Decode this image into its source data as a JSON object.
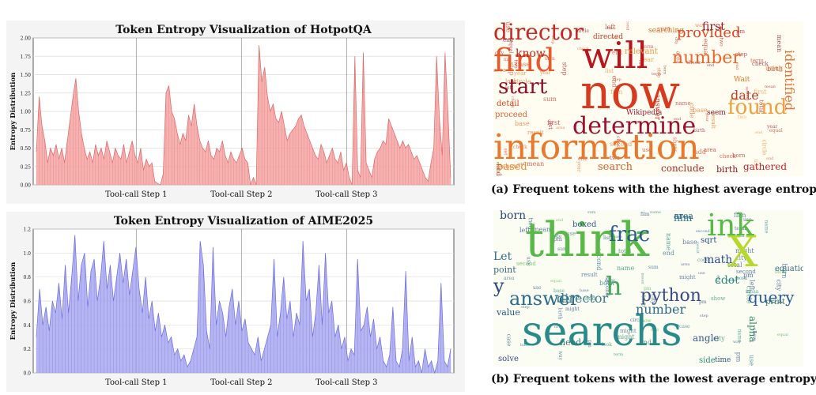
{
  "chart_data": [
    {
      "type": "area",
      "title": "Token Entropy Visualization of HotpotQA",
      "ylabel": "Entropy Distribution",
      "xlabel": "",
      "ylim": [
        0,
        2.0
      ],
      "yticks": [
        "0.00",
        "0.25",
        "0.50",
        "0.75",
        "1.00",
        "1.25",
        "1.50",
        "1.75",
        "2.00"
      ],
      "xticks": [
        "Tool-call Step 1",
        "Tool-call Step 2",
        "Tool-call Step 3"
      ],
      "step_boundaries_fraction": [
        0.245,
        0.495,
        0.745
      ],
      "grid": true,
      "color": "#f4a3a3",
      "line_color": "#e06666",
      "series": [
        {
          "values": [
            0.45,
            1.2,
            0.8,
            0.6,
            0.3,
            0.5,
            0.4,
            0.55,
            0.35,
            0.5,
            0.3,
            0.6,
            0.9,
            1.2,
            1.45,
            1.0,
            0.7,
            0.5,
            0.35,
            0.45,
            0.3,
            0.55,
            0.4,
            0.5,
            0.35,
            0.6,
            0.45,
            0.3,
            0.5,
            0.4,
            0.35,
            0.55,
            0.3,
            0.45,
            0.6,
            0.4,
            0.3,
            0.5,
            0.2,
            0.35,
            0.25,
            0.3,
            0.05,
            0.02,
            0.0,
            0.15,
            1.25,
            1.35,
            1.0,
            0.9,
            0.7,
            0.55,
            0.7,
            0.6,
            0.95,
            0.8,
            1.1,
            0.8,
            0.6,
            0.5,
            0.45,
            0.6,
            0.4,
            0.35,
            0.5,
            0.45,
            0.6,
            0.4,
            0.3,
            0.45,
            0.35,
            0.3,
            0.4,
            0.5,
            0.35,
            0.3,
            0.0,
            0.1,
            0.0,
            1.9,
            1.4,
            1.6,
            1.2,
            1.0,
            1.1,
            0.9,
            0.85,
            1.0,
            0.8,
            0.6,
            0.7,
            0.75,
            0.8,
            0.9,
            0.95,
            0.8,
            0.7,
            0.6,
            0.5,
            0.4,
            0.35,
            0.55,
            0.45,
            0.3,
            0.4,
            0.5,
            0.35,
            0.3,
            0.45,
            0.2,
            0.3,
            0.1,
            0.0,
            1.75,
            0.2,
            0.1,
            1.8,
            0.3,
            0.2,
            0.1,
            0.35,
            0.45,
            0.5,
            0.6,
            0.55,
            0.9,
            0.8,
            0.7,
            0.6,
            0.5,
            0.6,
            0.5,
            0.55,
            0.45,
            0.35,
            0.4,
            0.3,
            0.2,
            0.1,
            0.05,
            0.3,
            0.5,
            1.75,
            0.9,
            0.4,
            1.8,
            1.0,
            0.1
          ]
        }
      ]
    },
    {
      "type": "area",
      "title": "Token Entropy Visualization of AIME2025",
      "ylabel": "Entropy Distribution",
      "xlabel": "",
      "ylim": [
        0,
        1.2
      ],
      "yticks": [
        "0.0",
        "0.2",
        "0.4",
        "0.6",
        "0.8",
        "1.0",
        "1.2"
      ],
      "xticks": [
        "Tool-call Step 1",
        "Tool-call Step 2",
        "Tool-call Step 3"
      ],
      "step_boundaries_fraction": [
        0.245,
        0.495,
        0.745
      ],
      "grid": true,
      "color": "#a8a8f0",
      "line_color": "#6b6be0",
      "series": [
        {
          "values": [
            0.3,
            0.7,
            0.4,
            0.55,
            0.35,
            0.6,
            0.5,
            0.75,
            0.45,
            0.9,
            0.5,
            0.8,
            1.15,
            0.6,
            0.9,
            1.0,
            0.55,
            0.85,
            0.95,
            0.6,
            0.8,
            1.1,
            0.7,
            0.9,
            0.6,
            0.8,
            1.0,
            0.75,
            0.95,
            0.65,
            0.85,
            1.05,
            0.7,
            0.5,
            0.8,
            0.45,
            0.6,
            0.35,
            0.5,
            0.3,
            0.4,
            0.25,
            0.3,
            0.15,
            0.2,
            0.1,
            0.15,
            0.05,
            0.1,
            0.2,
            0.3,
            1.1,
            0.9,
            0.35,
            0.2,
            1.05,
            0.4,
            0.6,
            0.5,
            0.3,
            0.55,
            0.7,
            0.4,
            0.6,
            0.35,
            0.45,
            0.25,
            0.2,
            0.15,
            0.3,
            0.1,
            0.2,
            0.3,
            0.4,
            0.95,
            0.3,
            0.5,
            0.8,
            0.45,
            0.6,
            0.3,
            0.5,
            0.4,
            1.1,
            0.6,
            0.7,
            0.3,
            0.5,
            0.9,
            0.4,
            1.0,
            0.5,
            0.6,
            0.3,
            0.4,
            0.2,
            0.3,
            0.1,
            0.2,
            0.15,
            0.95,
            0.35,
            0.4,
            0.55,
            0.3,
            0.45,
            0.2,
            0.3,
            0.1,
            0.05,
            0.15,
            0.55,
            0.1,
            0.05,
            0.2,
            0.85,
            0.1,
            0.3,
            0.05,
            0.1,
            0.0,
            0.2,
            0.05,
            0.1,
            0.0,
            0.1,
            0.75,
            0.1,
            0.05,
            0.2
          ]
        }
      ]
    }
  ],
  "wordclouds": [
    {
      "caption": "(a) Frequent tokens with the highest average entropy",
      "background": "#fffdf2",
      "words": [
        {
          "t": "now",
          "s": 60,
          "c": "#d83a1f"
        },
        {
          "t": "information",
          "s": 44,
          "c": "#e8782d"
        },
        {
          "t": "will",
          "s": 46,
          "c": "#b8141d"
        },
        {
          "t": "find",
          "s": 40,
          "c": "#e8582d"
        },
        {
          "t": "determine",
          "s": 30,
          "c": "#9c1030"
        },
        {
          "t": "director",
          "s": 28,
          "c": "#c0282a"
        },
        {
          "t": "start",
          "s": 26,
          "c": "#8a1028"
        },
        {
          "t": "found",
          "s": 26,
          "c": "#f0a040"
        },
        {
          "t": "number",
          "s": 22,
          "c": "#e8682d"
        },
        {
          "t": "provided",
          "s": 18,
          "c": "#e04828"
        },
        {
          "t": "identified",
          "s": 16,
          "c": "#e87030"
        },
        {
          "t": "date",
          "s": 16,
          "c": "#c83a22"
        },
        {
          "t": "first",
          "s": 14,
          "c": "#8a1a2a"
        },
        {
          "t": "know",
          "s": 14,
          "c": "#b02a22"
        },
        {
          "t": "search",
          "s": 13,
          "c": "#d86030"
        },
        {
          "t": "based",
          "s": 13,
          "c": "#e89030"
        },
        {
          "t": "conclude",
          "s": 12,
          "c": "#a82a22"
        },
        {
          "t": "gathered",
          "s": 12,
          "c": "#b82830"
        },
        {
          "t": "birth",
          "s": 11,
          "c": "#8a1a2a"
        },
        {
          "t": "detail",
          "s": 10,
          "c": "#d04828"
        },
        {
          "t": "proceed",
          "s": 10,
          "c": "#e06030"
        },
        {
          "t": "relevant",
          "s": 10,
          "c": "#e89840"
        },
        {
          "t": "Wikipedia",
          "s": 9,
          "c": "#a02030"
        },
        {
          "t": "answer",
          "s": 9,
          "c": "#c83a22"
        },
        {
          "t": "searching",
          "s": 9,
          "c": "#d87030"
        },
        {
          "t": "seem",
          "s": 9,
          "c": "#8a1a2a"
        },
        {
          "t": "Wait",
          "s": 9,
          "c": "#e8782d"
        },
        {
          "t": "directed",
          "s": 9,
          "c": "#c03a2a"
        },
        {
          "t": "finding",
          "s": 8,
          "c": "#b84028"
        },
        {
          "t": "using",
          "s": 8,
          "c": "#e89040"
        }
      ]
    },
    {
      "caption": "(b) Frequent tokens with the lowest average entropy",
      "background": "#fbfdf3",
      "words": [
        {
          "t": "think",
          "s": 60,
          "c": "#58b848"
        },
        {
          "t": "searchs",
          "s": 52,
          "c": "#2a8a8a"
        },
        {
          "t": "X",
          "s": 54,
          "c": "#b8d830"
        },
        {
          "t": "ink",
          "s": 38,
          "c": "#58b848"
        },
        {
          "t": "frac",
          "s": 26,
          "c": "#2a5a8a"
        },
        {
          "t": "answer",
          "s": 24,
          "c": "#2a6a8a"
        },
        {
          "t": "python",
          "s": 22,
          "c": "#3a4a8a"
        },
        {
          "t": "y",
          "s": 24,
          "c": "#2a4a7a"
        },
        {
          "t": "h",
          "s": 32,
          "c": "#48a858"
        },
        {
          "t": "query",
          "s": 20,
          "c": "#2a5a9a"
        },
        {
          "t": "number",
          "s": 16,
          "c": "#2a6a8a"
        },
        {
          "t": "director",
          "s": 16,
          "c": "#3a7a8a"
        },
        {
          "t": "born",
          "s": 14,
          "c": "#2a4a7a"
        },
        {
          "t": "Let",
          "s": 14,
          "c": "#2a6a8a"
        },
        {
          "t": "math",
          "s": 14,
          "c": "#2a4a8a"
        },
        {
          "t": "cdot",
          "s": 14,
          "c": "#2a8a7a"
        },
        {
          "t": "angle",
          "s": 12,
          "c": "#3a5a8a"
        },
        {
          "t": "alpha",
          "s": 12,
          "c": "#3a8a6a"
        },
        {
          "t": "film",
          "s": 12,
          "c": "#2a7a8a"
        },
        {
          "t": "area",
          "s": 11,
          "c": "#2a5a7a"
        },
        {
          "t": "point",
          "s": 11,
          "c": "#3a6a8a"
        },
        {
          "t": "value",
          "s": 11,
          "c": "#2a5a8a"
        },
        {
          "t": "need",
          "s": 11,
          "c": "#2a7a6a"
        },
        {
          "t": "solve",
          "s": 10,
          "c": "#3a4a8a"
        },
        {
          "t": "side",
          "s": 10,
          "c": "#2a8a7a"
        },
        {
          "t": "boxed",
          "s": 10,
          "c": "#2a5a8a"
        },
        {
          "t": "equation",
          "s": 10,
          "c": "#3a6a8a"
        },
        {
          "t": "sqrt",
          "s": 10,
          "c": "#2a4a8a"
        },
        {
          "t": "print",
          "s": 10,
          "c": "#3a7a6a"
        },
        {
          "t": "time",
          "s": 9,
          "c": "#2a5a7a"
        }
      ]
    }
  ]
}
